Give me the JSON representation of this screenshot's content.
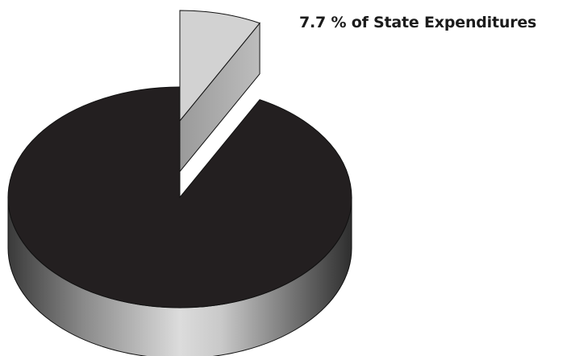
{
  "chart_data": {
    "type": "pie",
    "title": "",
    "slices": [
      {
        "value": 7.7,
        "unit": "% of State Expenditures",
        "label": "7.7 % of State Expenditures",
        "color": "#d2d2d2",
        "exploded": true
      },
      {
        "value": 92.3,
        "color": "#231f20",
        "exploded": false
      }
    ],
    "style": "3d",
    "legend": "none"
  }
}
